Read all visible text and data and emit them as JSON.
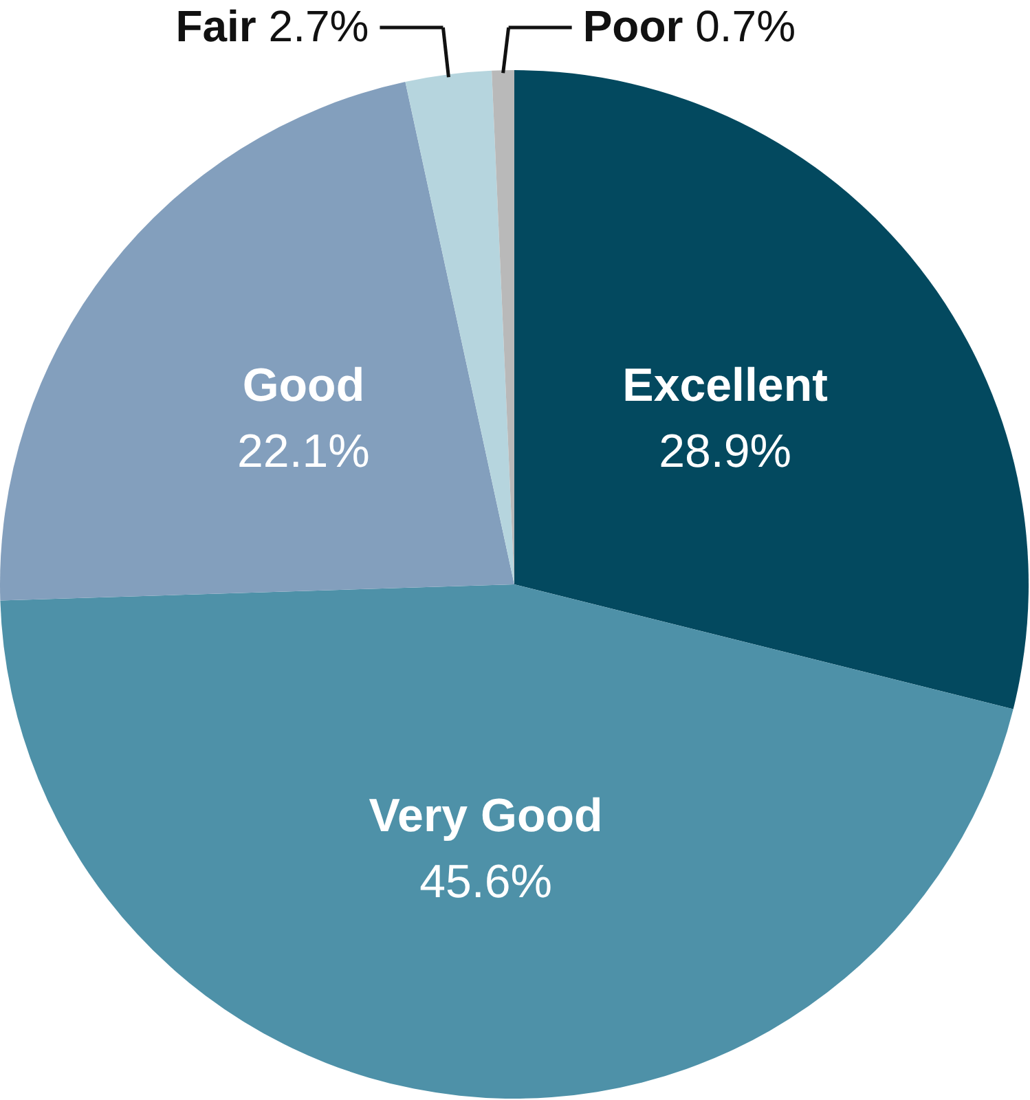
{
  "chart_data": {
    "type": "pie",
    "categories": [
      "Excellent",
      "Very Good",
      "Good",
      "Fair",
      "Poor"
    ],
    "values": [
      28.9,
      45.6,
      22.1,
      2.7,
      0.7
    ],
    "colors": [
      "#03495f",
      "#4e91a8",
      "#839fbd",
      "#b6d5de",
      "#b9b9b9"
    ],
    "value_labels": [
      "28.9%",
      "45.6%",
      "22.1%",
      "2.7%",
      "0.7%"
    ]
  }
}
